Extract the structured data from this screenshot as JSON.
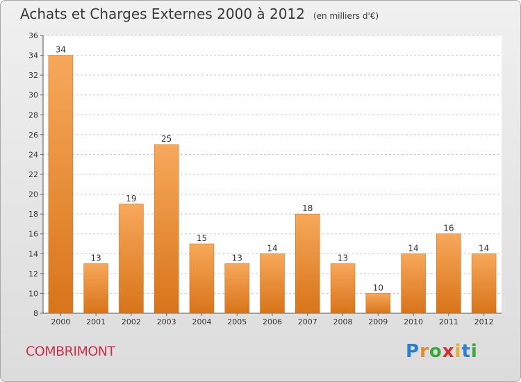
{
  "header": {
    "title": "Achats et Charges Externes 2000 à 2012",
    "unit": "(en milliers d'€)"
  },
  "footer": {
    "commune": "COMBRIMONT",
    "logo": {
      "p": "P",
      "r": "r",
      "o": "o",
      "x": "x",
      "i1": "i",
      "t": "t",
      "i2": "i"
    }
  },
  "colors": {
    "bar_top": "#f7a85a",
    "bar_bottom": "#d8741a",
    "grid": "#c8c8c8",
    "commune": "#c8324a"
  },
  "chart_data": {
    "type": "bar",
    "categories": [
      "2000",
      "2001",
      "2002",
      "2003",
      "2004",
      "2005",
      "2006",
      "2007",
      "2008",
      "2009",
      "2010",
      "2011",
      "2012"
    ],
    "values": [
      34,
      13,
      19,
      25,
      15,
      13,
      14,
      18,
      13,
      10,
      14,
      16,
      14
    ],
    "title": "Achats et Charges Externes 2000 à 2012",
    "ylim": [
      8,
      36
    ],
    "yticks": [
      8,
      10,
      12,
      14,
      16,
      18,
      20,
      22,
      24,
      26,
      28,
      30,
      32,
      34,
      36
    ],
    "grid": true
  }
}
